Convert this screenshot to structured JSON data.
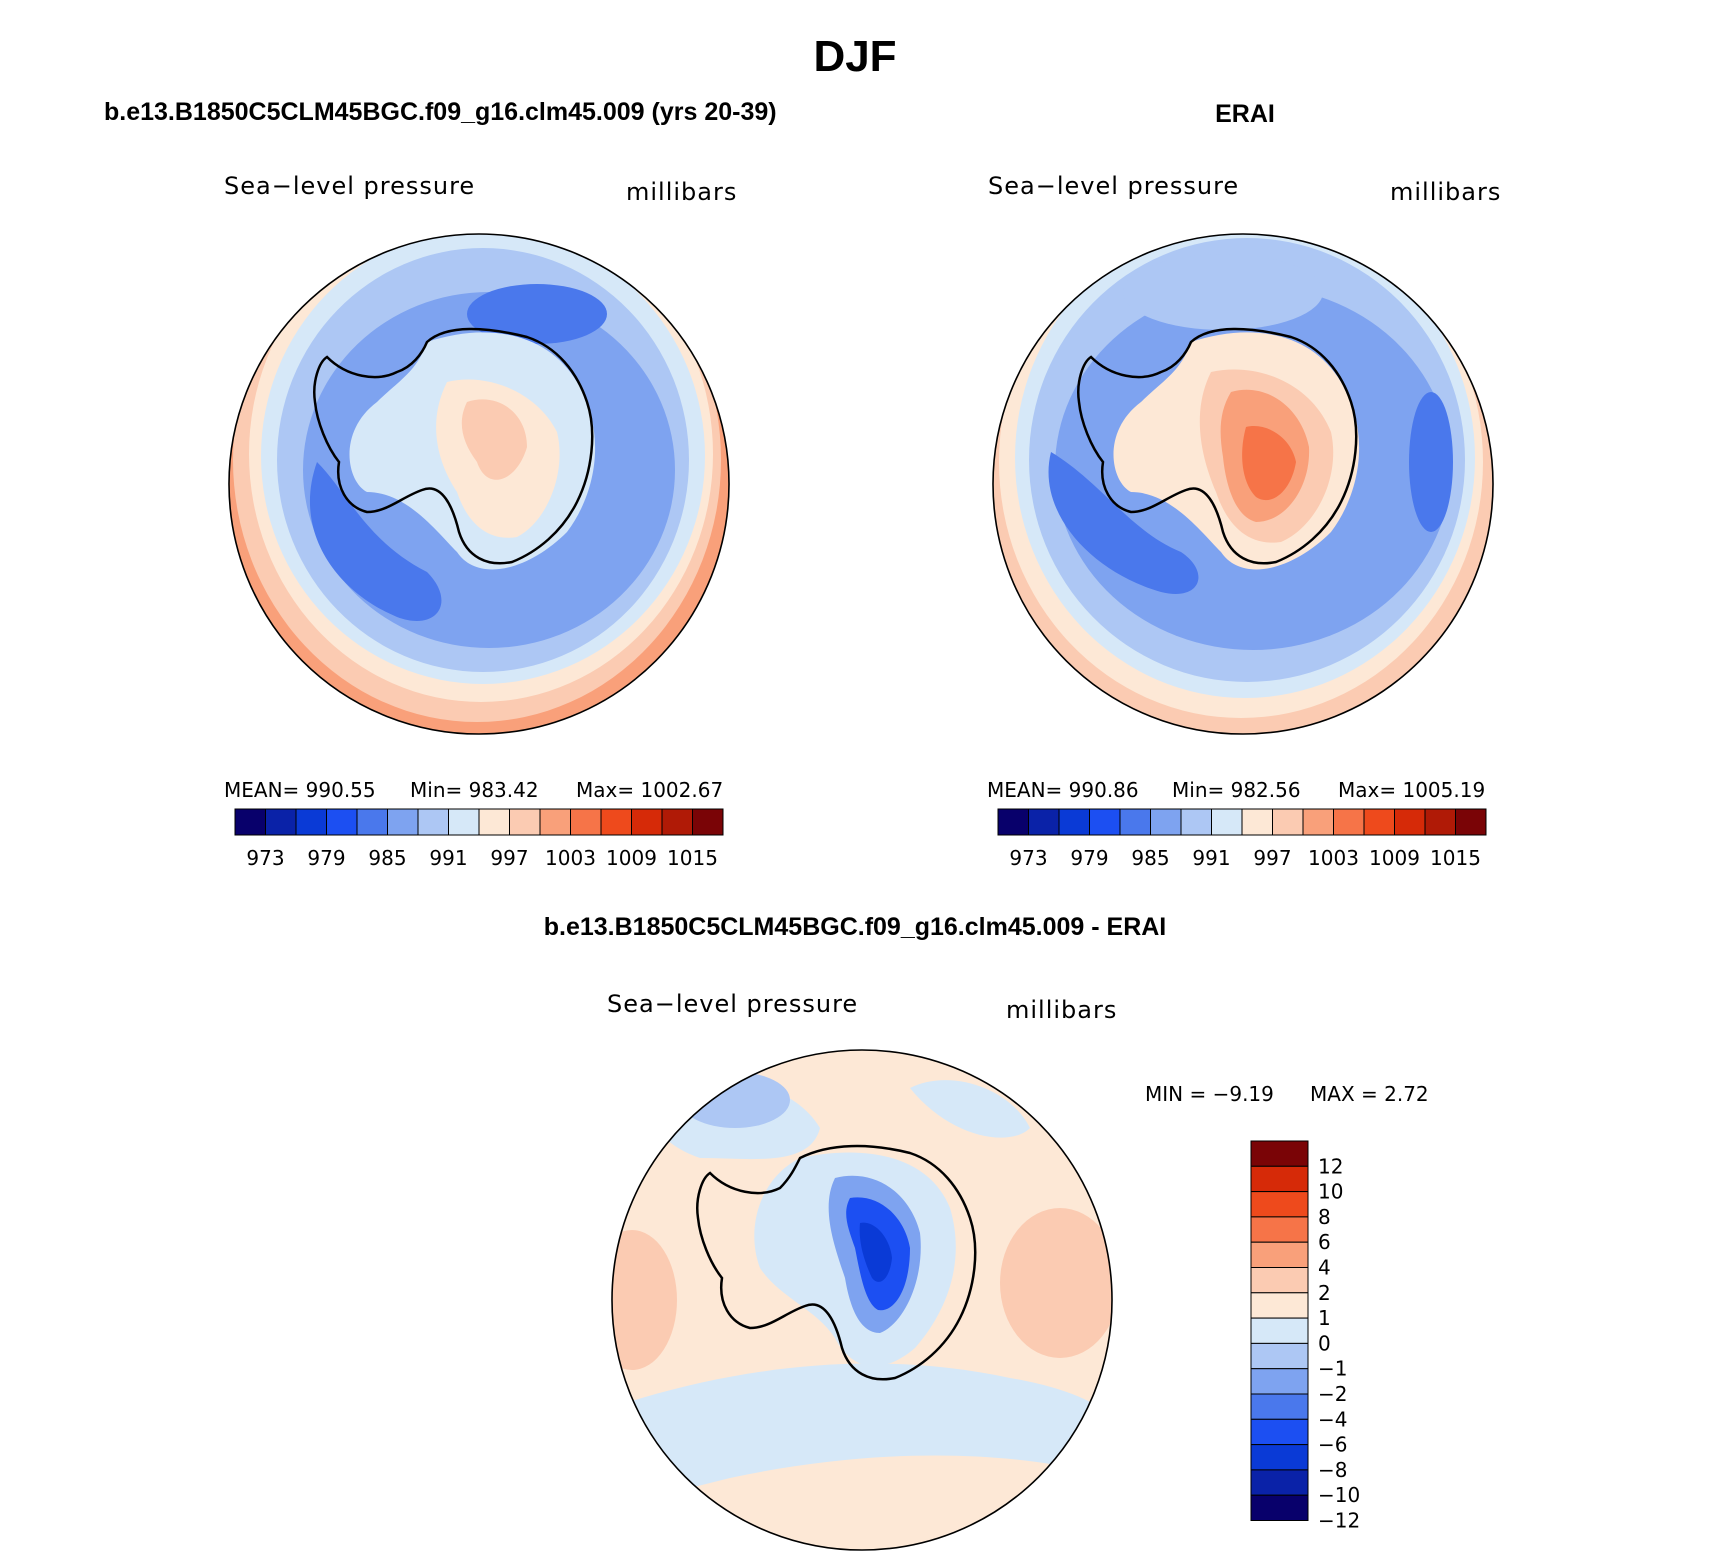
{
  "figure": {
    "season": "DJF",
    "panel_left_title": "b.e13.B1850C5CLM45BGC.f09_g16.clm45.009 (yrs 20-39)",
    "panel_right_title": "ERAI",
    "panel_diff_title": "b.e13.B1850C5CLM45BGC.f09_g16.clm45.009 - ERAI"
  },
  "colors": {
    "abs_scale": [
      "#08006b",
      "#0a22a8",
      "#0a3ad6",
      "#1c4ff2",
      "#4a78ec",
      "#7ea3f0",
      "#adc7f4",
      "#d6e8f8",
      "#fde8d6",
      "#fbcbb2",
      "#f9a07a",
      "#f67448",
      "#ee4a1c",
      "#d62a08",
      "#b01a06",
      "#7a0406"
    ],
    "diff_scale": [
      "#08006b",
      "#0a22a8",
      "#0a3ad6",
      "#1c4ff2",
      "#4a78ec",
      "#7ea3f0",
      "#adc7f4",
      "#d6e8f8",
      "#fde8d6",
      "#fbcbb2",
      "#f9a07a",
      "#f67448",
      "#ee4a1c",
      "#d62a08",
      "#7a0406"
    ]
  },
  "chart_data": [
    {
      "type": "heatmap",
      "projection": "south-polar-stereographic",
      "title": "b.e13.B1850C5CLM45BGC.f09_g16.clm45.009 (yrs 20-39)",
      "left_label": "Sea−level pressure",
      "right_label": "millibars",
      "stats_text": {
        "mean": "MEAN=  990.55",
        "min": "Min=  983.42",
        "max": "Max=  1002.67"
      },
      "stats": {
        "mean": 990.55,
        "min": 983.42,
        "max": 1002.67
      },
      "colorbar_levels": [
        973,
        976,
        979,
        982,
        985,
        988,
        991,
        994,
        997,
        1000,
        1003,
        1006,
        1009,
        1012,
        1015
      ],
      "colorbar_tick_labels": [
        "973",
        "979",
        "985",
        "991",
        "997",
        "1003",
        "1009",
        "1015"
      ]
    },
    {
      "type": "heatmap",
      "projection": "south-polar-stereographic",
      "title": "ERAI",
      "left_label": "Sea−level pressure",
      "right_label": "millibars",
      "stats_text": {
        "mean": "MEAN=  990.86",
        "min": "Min=  982.56",
        "max": "Max=  1005.19"
      },
      "stats": {
        "mean": 990.86,
        "min": 982.56,
        "max": 1005.19
      },
      "colorbar_levels": [
        973,
        976,
        979,
        982,
        985,
        988,
        991,
        994,
        997,
        1000,
        1003,
        1006,
        1009,
        1012,
        1015
      ],
      "colorbar_tick_labels": [
        "973",
        "979",
        "985",
        "991",
        "997",
        "1003",
        "1009",
        "1015"
      ]
    },
    {
      "type": "heatmap",
      "projection": "south-polar-stereographic",
      "title": "b.e13.B1850C5CLM45BGC.f09_g16.clm45.009 - ERAI",
      "left_label": "Sea−level pressure",
      "right_label": "millibars",
      "stats_text": {
        "min": "MIN =   −9.19",
        "max": "MAX =    2.72"
      },
      "stats": {
        "min": -9.19,
        "max": 2.72
      },
      "colorbar_levels": [
        -12,
        -10,
        -8,
        -6,
        -4,
        -2,
        -1,
        0,
        1,
        2,
        4,
        6,
        8,
        10,
        12
      ],
      "colorbar_tick_labels": [
        "12",
        "10",
        "8",
        "6",
        "4",
        "2",
        "1",
        "0",
        "−1",
        "−2",
        "−4",
        "−6",
        "−8",
        "−10",
        "−12"
      ]
    }
  ]
}
